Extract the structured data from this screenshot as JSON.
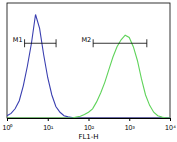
{
  "chart_data": {
    "type": "line",
    "log": "x",
    "x_label": "FL1-H",
    "x": [
      1,
      1.26,
      1.58,
      2,
      2.51,
      3.16,
      3.98,
      5.01,
      6.31,
      7.94,
      10,
      12.6,
      15.8,
      20,
      25.1,
      31.6,
      39.8,
      50.1,
      63.1,
      79.4,
      100,
      126,
      158,
      200,
      251,
      316,
      398,
      501,
      631,
      794,
      1000,
      1259,
      1585,
      1995,
      2512,
      3162,
      3981,
      5012,
      6310,
      7943,
      10000
    ],
    "series": [
      {
        "color": "#3a3fb0",
        "values": [
          2,
          4,
          8,
          15,
          28,
          45,
          65,
          90,
          78,
          55,
          35,
          20,
          10,
          5,
          2,
          1,
          0.5,
          0,
          0,
          0,
          0,
          0,
          0,
          0,
          0,
          0,
          0,
          0,
          0,
          0,
          0,
          0,
          0,
          0,
          0,
          0,
          0,
          0,
          0,
          0,
          0
        ]
      },
      {
        "color": "#5fd35a",
        "values": [
          0,
          0,
          0,
          0,
          0,
          0,
          0,
          0,
          0,
          0,
          0,
          0,
          0,
          0,
          0,
          0,
          0,
          0.8,
          1.5,
          3,
          5,
          8,
          14,
          22,
          31,
          42,
          53,
          62,
          68,
          72,
          70,
          62,
          50,
          34,
          20,
          11,
          5,
          2,
          0.8,
          0,
          0
        ]
      }
    ],
    "xlim": [
      1,
      10000
    ],
    "xticks": [
      {
        "value": 1,
        "label": "10⁰"
      },
      {
        "value": 10,
        "label": "10¹"
      },
      {
        "value": 100,
        "label": "10²"
      },
      {
        "value": 1000,
        "label": "10³"
      },
      {
        "value": 10000,
        "label": "10⁴"
      }
    ],
    "ylim": [
      0,
      100
    ],
    "tick_labels": "x",
    "annotations": [
      {
        "label": "M1",
        "x1": 2.7,
        "x2": 16,
        "y": 65
      },
      {
        "label": "M2",
        "x1": 130,
        "x2": 2700,
        "y": 65
      }
    ]
  }
}
